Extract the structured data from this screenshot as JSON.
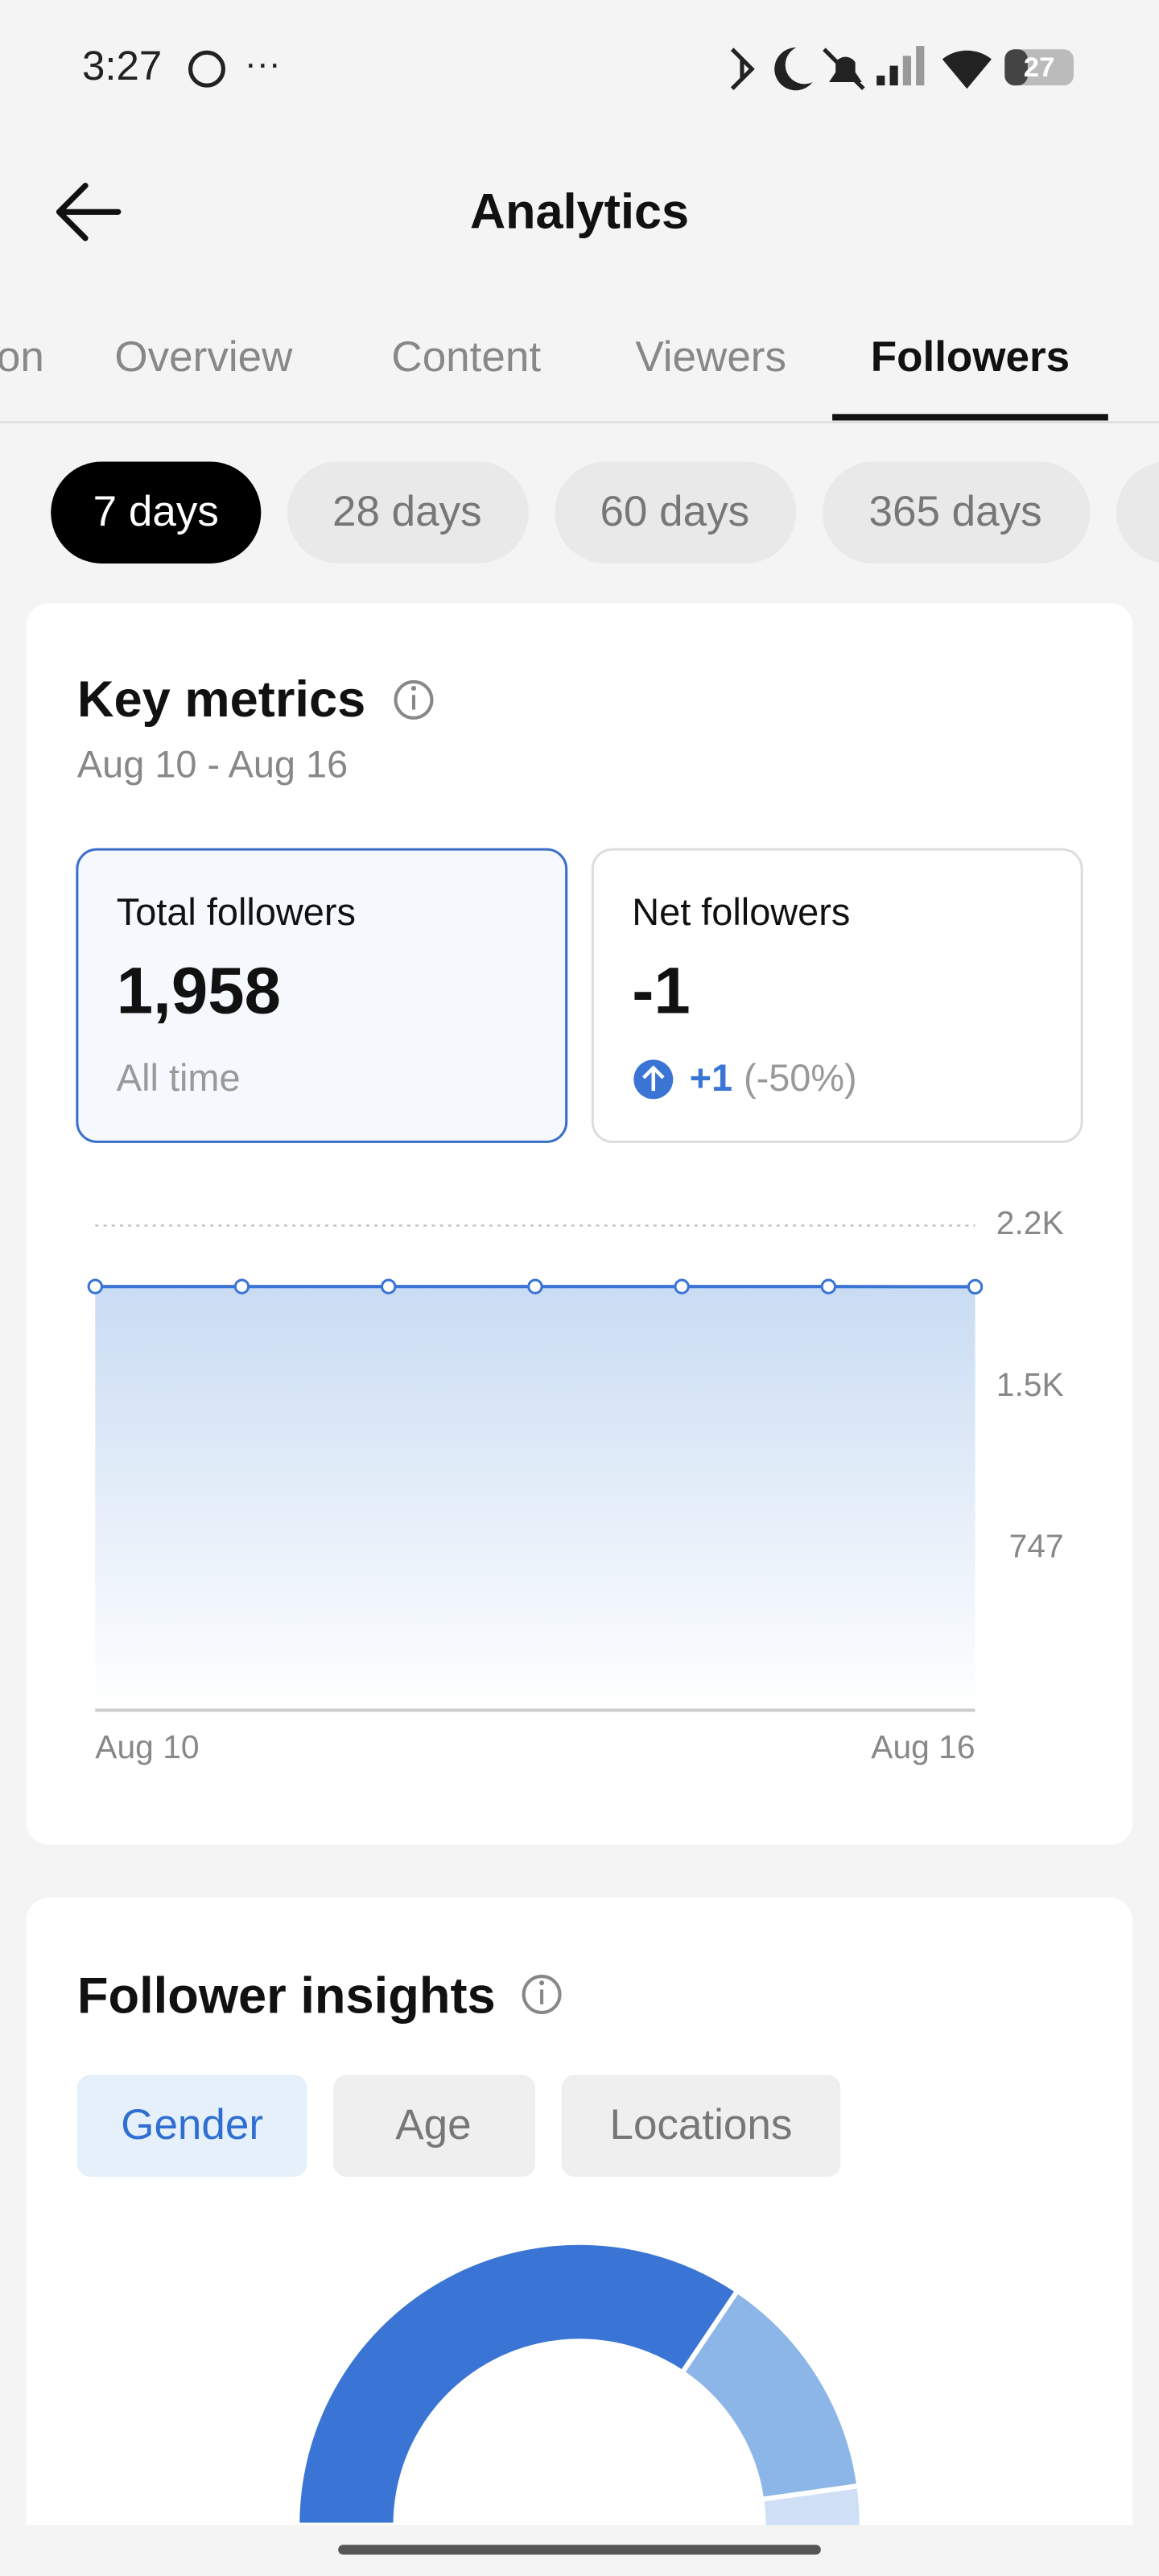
{
  "status_bar": {
    "time": "3:27",
    "battery": "27"
  },
  "header": {
    "title": "Analytics"
  },
  "tabs": [
    "on",
    "Overview",
    "Content",
    "Viewers",
    "Followers"
  ],
  "ranges": [
    "7 days",
    "28 days",
    "60 days",
    "365 days"
  ],
  "key_metrics": {
    "title": "Key metrics",
    "date_range": "Aug 10 - Aug 16",
    "cards": [
      {
        "label": "Total followers",
        "value": "1,958",
        "note": "All time"
      },
      {
        "label": "Net followers",
        "value": "-1",
        "change": "+1",
        "change_pct": "(-50%)"
      }
    ]
  },
  "chart_data": {
    "type": "line",
    "categories": [
      "Aug 10",
      null,
      null,
      null,
      null,
      null,
      "Aug 16"
    ],
    "values": [
      1959,
      1959,
      1959,
      1959,
      1959,
      1959,
      1958
    ],
    "color": "#3a74d4",
    "ylim": [
      0,
      2241
    ],
    "yticks": [
      747,
      {
        "value": 1494,
        "label": "1.5K"
      },
      {
        "value": 2241,
        "label": "2.2K"
      }
    ],
    "grid": true
  },
  "insights": {
    "title": "Follower insights",
    "tabs": [
      "Gender",
      "Age",
      "Locations"
    ]
  }
}
